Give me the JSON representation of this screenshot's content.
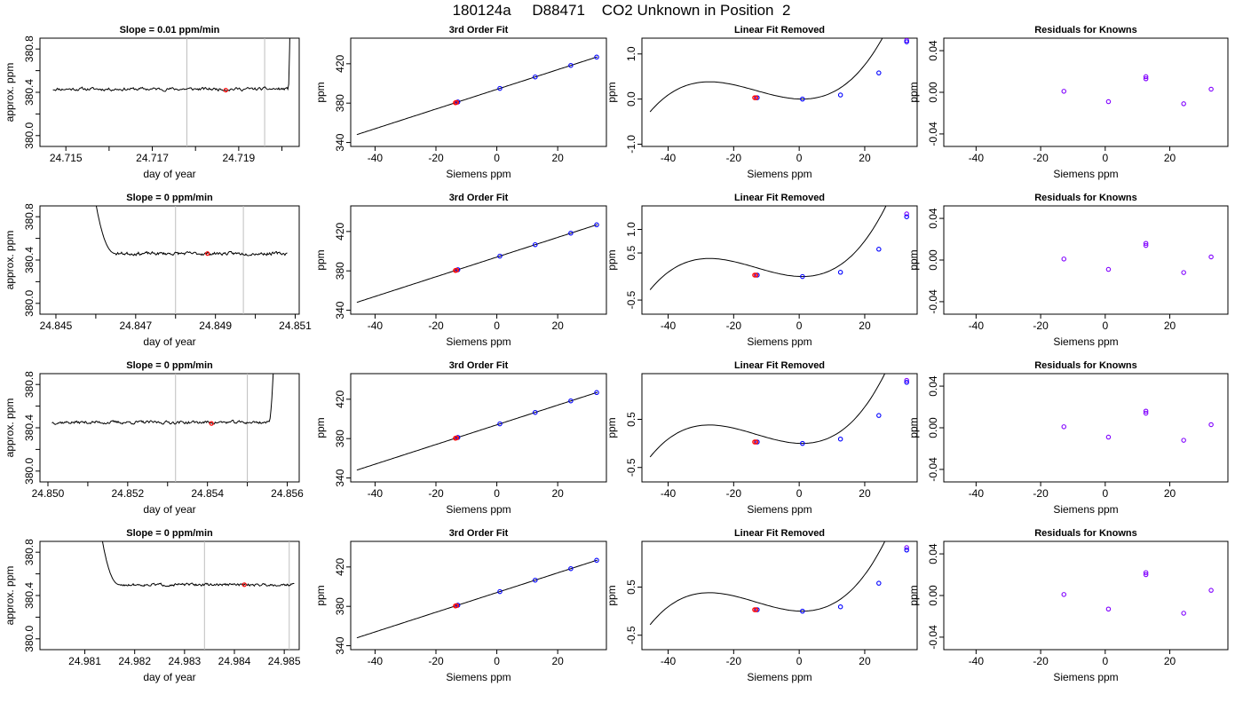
{
  "page_title": "180124a     D88471    CO2 Unknown in Position  2",
  "colors": {
    "line": "#000000",
    "grid_vline": "#bebebe",
    "known_point": "#0000ff",
    "unknown_point": "#ff0000",
    "residual_point": "#8000ff"
  },
  "chart_data": [
    {
      "row": 1,
      "col": 1,
      "type": "line",
      "title": "Slope =  0.01  ppm/min",
      "xlabel": "day of year",
      "ylabel": "approx. ppm",
      "xlim": [
        24.7144,
        24.7204
      ],
      "ylim": [
        379.9,
        380.9
      ],
      "xticks": [
        24.715,
        24.716,
        24.717,
        24.718,
        24.719,
        24.72
      ],
      "xtick_labels": [
        "24.715",
        "",
        "24.717",
        "",
        "24.719",
        ""
      ],
      "yticks": [
        380.0,
        380.2,
        380.4,
        380.6,
        380.8
      ],
      "ytick_labels": [
        "380.0",
        "",
        "380.4",
        "",
        "380.8"
      ],
      "trace": {
        "x_start": 24.7147,
        "x_end": 24.7202,
        "mean": 380.43,
        "noise": 0.012,
        "spike": "end",
        "spike_start": 24.72015,
        "spike_peak": 381.0,
        "seed": 11
      },
      "vlines": [
        24.7178,
        24.7196
      ],
      "unknown_point": {
        "x": 24.7187,
        "y": 380.42
      }
    },
    {
      "row": 1,
      "col": 2,
      "type": "scatter_fit",
      "title": "3rd Order Fit",
      "xlabel": "Siemens ppm",
      "ylabel": "ppm",
      "xlim": [
        -48,
        36
      ],
      "ylim": [
        336,
        446
      ],
      "xticks": [
        -40,
        -20,
        0,
        20
      ],
      "yticks": [
        340,
        380,
        420
      ],
      "fit": {
        "kind": "linear",
        "slope": 1.0,
        "intercept": 394,
        "x_start": -46,
        "x_end": 33
      },
      "knowns": [
        {
          "x": -12.8,
          "y": 381.2
        },
        {
          "x": 1.0,
          "y": 395.0
        },
        {
          "x": 12.6,
          "y": 406.6
        },
        {
          "x": 24.3,
          "y": 418.3
        },
        {
          "x": 32.8,
          "y": 426.8
        }
      ],
      "unknowns": [
        {
          "x": -13.6,
          "y": 380.4
        },
        {
          "x": -13.2,
          "y": 380.8
        }
      ]
    },
    {
      "row": 1,
      "col": 3,
      "type": "scatter_fit",
      "title": "Linear Fit Removed",
      "xlabel": "Siemens ppm",
      "ylabel": "ppm",
      "xlim": [
        -48,
        36
      ],
      "ylim": [
        -1.05,
        1.35
      ],
      "xticks": [
        -40,
        -20,
        0,
        20
      ],
      "yticks": [
        -1.0,
        0.0,
        1.0
      ],
      "ytick_labels": [
        "-1.0",
        "0.0",
        "1.0"
      ],
      "fit": {
        "kind": "cubic",
        "x0": 0.9,
        "a": 3.364e-05,
        "b": 0.00143,
        "c": 0.0,
        "d": 0.0,
        "x_start": -45.5,
        "x_end": 33
      },
      "knowns": [
        {
          "x": -12.8,
          "y": 0.03
        },
        {
          "x": 1.0,
          "y": 0.0
        },
        {
          "x": 12.6,
          "y": 0.09
        },
        {
          "x": 24.3,
          "y": 0.58
        },
        {
          "x": 32.8,
          "y": 1.27
        }
      ],
      "unknowns": [
        {
          "x": -13.6,
          "y": 0.03
        },
        {
          "x": -13.2,
          "y": 0.03
        }
      ],
      "extra_knowns": [
        {
          "x": 32.8,
          "y": 1.3
        }
      ]
    },
    {
      "row": 1,
      "col": 4,
      "type": "scatter",
      "title": "Residuals for Knowns",
      "xlabel": "Siemens ppm",
      "ylabel": "ppm",
      "xlim": [
        -50,
        38
      ],
      "ylim": [
        -0.052,
        0.052
      ],
      "xticks": [
        -40,
        -20,
        0,
        20
      ],
      "yticks": [
        -0.04,
        0.0,
        0.04
      ],
      "ytick_labels": [
        "-0.04",
        "0.00",
        "0.04"
      ],
      "points": [
        {
          "x": -12.8,
          "y": 0.001
        },
        {
          "x": 1.0,
          "y": -0.009
        },
        {
          "x": 12.6,
          "y": 0.013
        },
        {
          "x": 12.6,
          "y": 0.015
        },
        {
          "x": 24.3,
          "y": -0.011
        },
        {
          "x": 32.8,
          "y": 0.003
        }
      ]
    },
    {
      "row": 2,
      "col": 1,
      "type": "line",
      "title": "Slope =  0  ppm/min",
      "xlabel": "day of year",
      "ylabel": "approx. ppm",
      "xlim": [
        24.8446,
        24.8511
      ],
      "ylim": [
        379.9,
        380.9
      ],
      "xticks": [
        24.845,
        24.846,
        24.847,
        24.848,
        24.849,
        24.85,
        24.851
      ],
      "xtick_labels": [
        "24.845",
        "",
        "24.847",
        "",
        "24.849",
        "",
        "24.851"
      ],
      "yticks": [
        380.0,
        380.2,
        380.4,
        380.6,
        380.8
      ],
      "ytick_labels": [
        "380.0",
        "",
        "380.4",
        "",
        "380.8"
      ],
      "trace": {
        "x_start": 24.8458,
        "x_end": 24.8508,
        "mean": 380.46,
        "noise": 0.012,
        "spike": "start",
        "spike_end": 24.8465,
        "spike_peak": 381.0,
        "seed": 23
      },
      "vlines": [
        24.848,
        24.8497
      ],
      "unknown_point": {
        "x": 24.8488,
        "y": 380.46
      }
    },
    {
      "row": 2,
      "col": 2,
      "type": "scatter_fit",
      "title": "3rd Order Fit",
      "xlabel": "Siemens ppm",
      "ylabel": "ppm",
      "xlim": [
        -48,
        36
      ],
      "ylim": [
        336,
        446
      ],
      "xticks": [
        -40,
        -20,
        0,
        20
      ],
      "yticks": [
        340,
        380,
        420
      ],
      "fit": {
        "kind": "linear",
        "slope": 1.0,
        "intercept": 394,
        "x_start": -46,
        "x_end": 33
      },
      "knowns": [
        {
          "x": -12.8,
          "y": 381.2
        },
        {
          "x": 1.0,
          "y": 395.0
        },
        {
          "x": 12.6,
          "y": 406.6
        },
        {
          "x": 24.3,
          "y": 418.3
        },
        {
          "x": 32.8,
          "y": 426.8
        }
      ],
      "unknowns": [
        {
          "x": -13.6,
          "y": 380.4
        },
        {
          "x": -13.2,
          "y": 380.8
        }
      ]
    },
    {
      "row": 2,
      "col": 3,
      "type": "scatter_fit",
      "title": "Linear Fit Removed",
      "xlabel": "Siemens ppm",
      "ylabel": "ppm",
      "xlim": [
        -48,
        36
      ],
      "ylim": [
        -0.8,
        1.5
      ],
      "xticks": [
        -40,
        -20,
        0,
        20
      ],
      "yticks": [
        -0.5,
        0.5,
        1.0
      ],
      "ytick_labels": [
        "-0.5",
        "0.5",
        "1.0"
      ],
      "fit": {
        "kind": "cubic",
        "x0": 0.9,
        "a": 3.364e-05,
        "b": 0.00143,
        "c": 0.0,
        "d": 0.0,
        "x_start": -45.5,
        "x_end": 33
      },
      "knowns": [
        {
          "x": -12.8,
          "y": 0.03
        },
        {
          "x": 1.0,
          "y": 0.0
        },
        {
          "x": 12.6,
          "y": 0.09
        },
        {
          "x": 24.3,
          "y": 0.58
        },
        {
          "x": 32.8,
          "y": 1.27
        }
      ],
      "unknowns": [
        {
          "x": -13.6,
          "y": 0.03
        },
        {
          "x": -13.2,
          "y": 0.03
        }
      ],
      "extra_knowns": [
        {
          "x": 32.8,
          "y": 1.33
        }
      ]
    },
    {
      "row": 2,
      "col": 4,
      "type": "scatter",
      "title": "Residuals for Knowns",
      "xlabel": "Siemens ppm",
      "ylabel": "ppm",
      "xlim": [
        -50,
        38
      ],
      "ylim": [
        -0.052,
        0.052
      ],
      "xticks": [
        -40,
        -20,
        0,
        20
      ],
      "yticks": [
        -0.04,
        0.0,
        0.04
      ],
      "ytick_labels": [
        "-0.04",
        "0.00",
        "0.04"
      ],
      "points": [
        {
          "x": -12.8,
          "y": 0.001
        },
        {
          "x": 1.0,
          "y": -0.009
        },
        {
          "x": 12.6,
          "y": 0.014
        },
        {
          "x": 12.6,
          "y": 0.016
        },
        {
          "x": 24.3,
          "y": -0.012
        },
        {
          "x": 32.8,
          "y": 0.003
        }
      ]
    },
    {
      "row": 3,
      "col": 1,
      "type": "line",
      "title": "Slope =  0  ppm/min",
      "xlabel": "day of year",
      "ylabel": "approx. ppm",
      "xlim": [
        24.8498,
        24.8563
      ],
      "ylim": [
        379.9,
        380.9
      ],
      "xticks": [
        24.85,
        24.851,
        24.852,
        24.853,
        24.854,
        24.855,
        24.856
      ],
      "xtick_labels": [
        "24.850",
        "",
        "24.852",
        "",
        "24.854",
        "",
        "24.856"
      ],
      "yticks": [
        380.0,
        380.2,
        380.4,
        380.6,
        380.8
      ],
      "ytick_labels": [
        "380.0",
        "",
        "380.4",
        "",
        "380.8"
      ],
      "trace": {
        "x_start": 24.8501,
        "x_end": 24.8557,
        "mean": 380.45,
        "noise": 0.012,
        "spike": "end",
        "spike_start": 24.85555,
        "spike_peak": 381.0,
        "seed": 37
      },
      "vlines": [
        24.8532,
        24.855
      ],
      "unknown_point": {
        "x": 24.8541,
        "y": 380.44
      }
    },
    {
      "row": 3,
      "col": 2,
      "type": "scatter_fit",
      "title": "3rd Order Fit",
      "xlabel": "Siemens ppm",
      "ylabel": "ppm",
      "xlim": [
        -48,
        36
      ],
      "ylim": [
        336,
        446
      ],
      "xticks": [
        -40,
        -20,
        0,
        20
      ],
      "yticks": [
        340,
        380,
        420
      ],
      "fit": {
        "kind": "linear",
        "slope": 1.0,
        "intercept": 394,
        "x_start": -46,
        "x_end": 33
      },
      "knowns": [
        {
          "x": -12.8,
          "y": 381.2
        },
        {
          "x": 1.0,
          "y": 395.0
        },
        {
          "x": 12.6,
          "y": 406.6
        },
        {
          "x": 24.3,
          "y": 418.3
        },
        {
          "x": 32.8,
          "y": 426.8
        }
      ],
      "unknowns": [
        {
          "x": -13.6,
          "y": 380.4
        },
        {
          "x": -13.2,
          "y": 380.8
        }
      ]
    },
    {
      "row": 3,
      "col": 3,
      "type": "scatter_fit",
      "title": "Linear Fit Removed",
      "xlabel": "Siemens ppm",
      "ylabel": "ppm",
      "xlim": [
        -48,
        36
      ],
      "ylim": [
        -0.8,
        1.45
      ],
      "xticks": [
        -40,
        -20,
        0,
        20
      ],
      "yticks": [
        -0.5,
        0.5
      ],
      "ytick_labels": [
        "-0.5",
        "0.5"
      ],
      "fit": {
        "kind": "cubic",
        "x0": 0.9,
        "a": 3.364e-05,
        "b": 0.00143,
        "c": 0.0,
        "d": 0.0,
        "x_start": -45.5,
        "x_end": 33
      },
      "knowns": [
        {
          "x": -12.8,
          "y": 0.03
        },
        {
          "x": 1.0,
          "y": 0.0
        },
        {
          "x": 12.6,
          "y": 0.09
        },
        {
          "x": 24.3,
          "y": 0.58
        },
        {
          "x": 32.8,
          "y": 1.27
        }
      ],
      "unknowns": [
        {
          "x": -13.6,
          "y": 0.03
        },
        {
          "x": -13.2,
          "y": 0.03
        }
      ],
      "extra_knowns": [
        {
          "x": 32.8,
          "y": 1.31
        }
      ]
    },
    {
      "row": 3,
      "col": 4,
      "type": "scatter",
      "title": "Residuals for Knowns",
      "xlabel": "Siemens ppm",
      "ylabel": "ppm",
      "xlim": [
        -50,
        38
      ],
      "ylim": [
        -0.052,
        0.052
      ],
      "xticks": [
        -40,
        -20,
        0,
        20
      ],
      "yticks": [
        -0.04,
        0.0,
        0.04
      ],
      "ytick_labels": [
        "-0.04",
        "0.00",
        "0.04"
      ],
      "points": [
        {
          "x": -12.8,
          "y": 0.001
        },
        {
          "x": 1.0,
          "y": -0.009
        },
        {
          "x": 12.6,
          "y": 0.014
        },
        {
          "x": 12.6,
          "y": 0.016
        },
        {
          "x": 24.3,
          "y": -0.012
        },
        {
          "x": 32.8,
          "y": 0.003
        }
      ]
    },
    {
      "row": 4,
      "col": 1,
      "type": "line",
      "title": "Slope =  0  ppm/min",
      "xlabel": "day of year",
      "ylabel": "approx. ppm",
      "xlim": [
        24.9801,
        24.9853
      ],
      "ylim": [
        379.9,
        380.9
      ],
      "xticks": [
        24.981,
        24.982,
        24.983,
        24.984,
        24.985
      ],
      "xtick_labels": [
        "24.981",
        "24.982",
        "24.983",
        "24.984",
        "24.985"
      ],
      "yticks": [
        380.0,
        380.2,
        380.4,
        380.6,
        380.8
      ],
      "ytick_labels": [
        "380.0",
        "",
        "380.4",
        "",
        "380.8"
      ],
      "trace": {
        "x_start": 24.9812,
        "x_end": 24.9852,
        "mean": 380.5,
        "noise": 0.01,
        "spike": "start",
        "spike_end": 24.9817,
        "spike_peak": 381.0,
        "seed": 51
      },
      "vlines": [
        24.9834,
        24.9851
      ],
      "unknown_point": {
        "x": 24.9842,
        "y": 380.5
      }
    },
    {
      "row": 4,
      "col": 2,
      "type": "scatter_fit",
      "title": "3rd Order Fit",
      "xlabel": "Siemens ppm",
      "ylabel": "ppm",
      "xlim": [
        -48,
        36
      ],
      "ylim": [
        336,
        446
      ],
      "xticks": [
        -40,
        -20,
        0,
        20
      ],
      "yticks": [
        340,
        380,
        420
      ],
      "fit": {
        "kind": "linear",
        "slope": 1.0,
        "intercept": 394,
        "x_start": -46,
        "x_end": 33
      },
      "knowns": [
        {
          "x": -12.8,
          "y": 381.2
        },
        {
          "x": 1.0,
          "y": 395.0
        },
        {
          "x": 12.6,
          "y": 406.6
        },
        {
          "x": 24.3,
          "y": 418.3
        },
        {
          "x": 32.8,
          "y": 426.8
        }
      ],
      "unknowns": [
        {
          "x": -13.6,
          "y": 380.4
        },
        {
          "x": -13.2,
          "y": 380.8
        }
      ]
    },
    {
      "row": 4,
      "col": 3,
      "type": "scatter_fit",
      "title": "Linear Fit Removed",
      "xlabel": "Siemens ppm",
      "ylabel": "ppm",
      "xlim": [
        -48,
        36
      ],
      "ylim": [
        -0.8,
        1.45
      ],
      "xticks": [
        -40,
        -20,
        0,
        20
      ],
      "yticks": [
        -0.5,
        0.5
      ],
      "ytick_labels": [
        "-0.5",
        "0.5"
      ],
      "fit": {
        "kind": "cubic",
        "x0": 0.9,
        "a": 3.364e-05,
        "b": 0.00143,
        "c": 0.0,
        "d": 0.0,
        "x_start": -45.5,
        "x_end": 33
      },
      "knowns": [
        {
          "x": -12.8,
          "y": 0.03
        },
        {
          "x": 1.0,
          "y": 0.0
        },
        {
          "x": 12.6,
          "y": 0.09
        },
        {
          "x": 24.3,
          "y": 0.58
        },
        {
          "x": 32.8,
          "y": 1.27
        }
      ],
      "unknowns": [
        {
          "x": -13.6,
          "y": 0.03
        },
        {
          "x": -13.2,
          "y": 0.03
        }
      ],
      "extra_knowns": [
        {
          "x": 32.8,
          "y": 1.32
        }
      ]
    },
    {
      "row": 4,
      "col": 4,
      "type": "scatter",
      "title": "Residuals for Knowns",
      "xlabel": "Siemens ppm",
      "ylabel": "ppm",
      "xlim": [
        -50,
        38
      ],
      "ylim": [
        -0.052,
        0.052
      ],
      "xticks": [
        -40,
        -20,
        0,
        20
      ],
      "yticks": [
        -0.04,
        0.0,
        0.04
      ],
      "ytick_labels": [
        "-0.04",
        "0.00",
        "0.04"
      ],
      "points": [
        {
          "x": -12.8,
          "y": 0.001
        },
        {
          "x": 1.0,
          "y": -0.013
        },
        {
          "x": 12.6,
          "y": 0.02
        },
        {
          "x": 12.6,
          "y": 0.022
        },
        {
          "x": 24.3,
          "y": -0.017
        },
        {
          "x": 32.8,
          "y": 0.005
        }
      ]
    }
  ]
}
